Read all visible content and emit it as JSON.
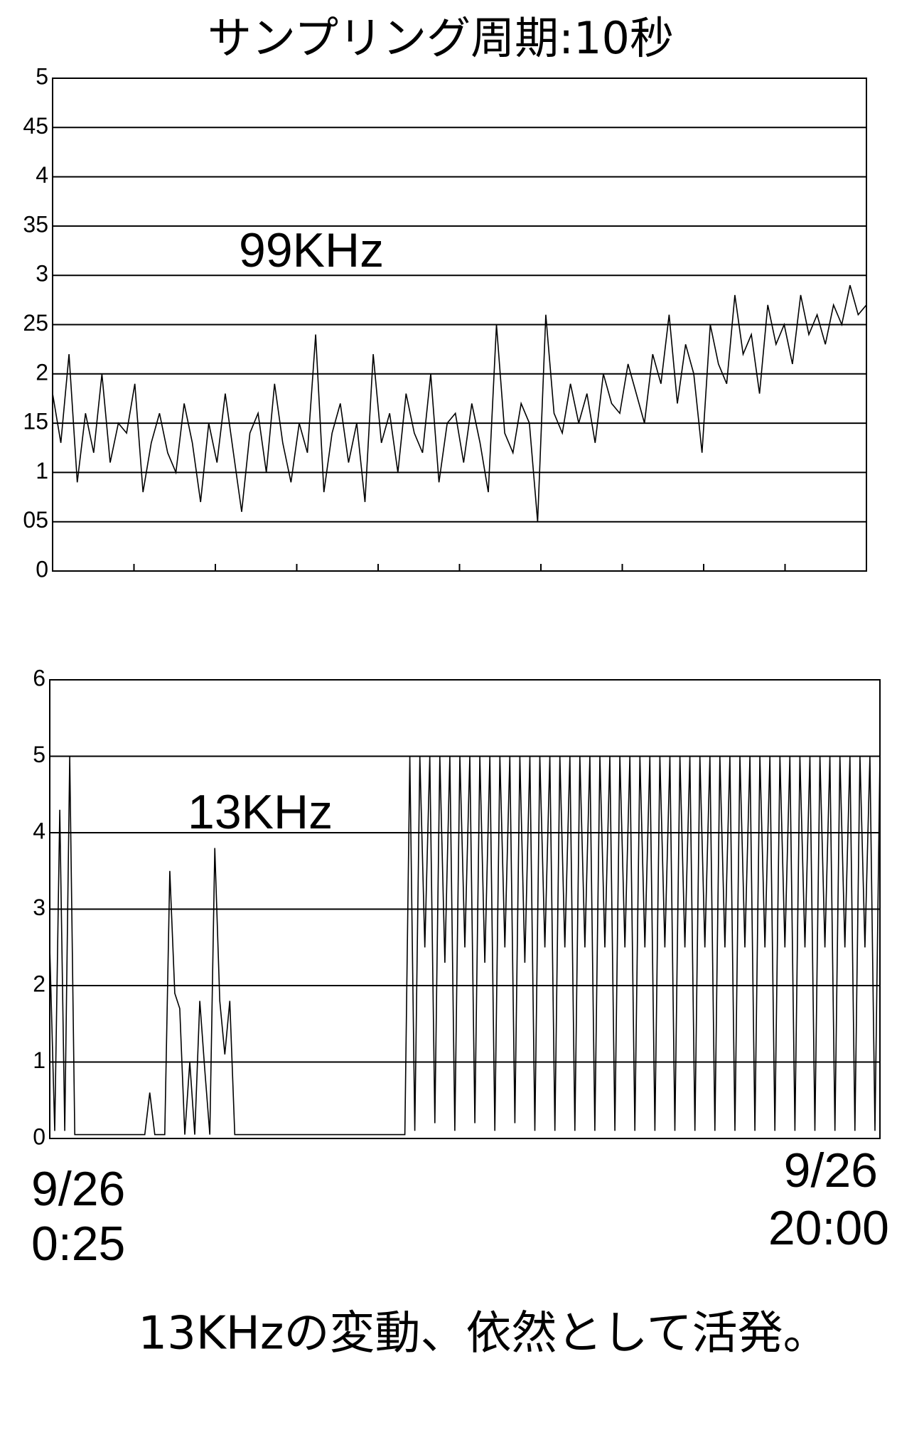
{
  "title": "サンプリング周期:10秒",
  "caption": "13KHzの変動、依然として活発。",
  "x_labels": [
    [
      "9/26",
      "0:25"
    ],
    [
      "9/26",
      "20:00"
    ]
  ],
  "chart_data": [
    {
      "type": "line",
      "annotation": "99KHz",
      "color": "#000000",
      "grid": true,
      "ylim": [
        0,
        5
      ],
      "yticks": [
        0,
        {
          "value": 0.5,
          "label": "05"
        },
        1,
        {
          "value": 1.5,
          "label": "15"
        },
        2,
        {
          "value": 2.5,
          "label": "25"
        },
        3,
        {
          "value": 3.5,
          "label": "35"
        },
        4,
        {
          "value": 4.5,
          "label": "45"
        },
        5
      ],
      "values": [
        1.8,
        1.3,
        2.2,
        0.9,
        1.6,
        1.2,
        2.0,
        1.1,
        1.5,
        1.4,
        1.9,
        0.8,
        1.3,
        1.6,
        1.2,
        1.0,
        1.7,
        1.3,
        0.7,
        1.5,
        1.1,
        1.8,
        1.2,
        0.6,
        1.4,
        1.6,
        1.0,
        1.9,
        1.3,
        0.9,
        1.5,
        1.2,
        2.4,
        0.8,
        1.4,
        1.7,
        1.1,
        1.5,
        0.7,
        2.2,
        1.3,
        1.6,
        1.0,
        1.8,
        1.4,
        1.2,
        2.0,
        0.9,
        1.5,
        1.6,
        1.1,
        1.7,
        1.3,
        0.8,
        2.5,
        1.4,
        1.2,
        1.7,
        1.5,
        0.5,
        2.6,
        1.6,
        1.4,
        1.9,
        1.5,
        1.8,
        1.3,
        2.0,
        1.7,
        1.6,
        2.1,
        1.8,
        1.5,
        2.2,
        1.9,
        2.6,
        1.7,
        2.3,
        2.0,
        1.2,
        2.5,
        2.1,
        1.9,
        2.8,
        2.2,
        2.4,
        1.8,
        2.7,
        2.3,
        2.5,
        2.1,
        2.8,
        2.4,
        2.6,
        2.3,
        2.7,
        2.5,
        2.9,
        2.6,
        2.7
      ]
    },
    {
      "type": "line",
      "annotation": "13KHz",
      "color": "#000000",
      "grid": true,
      "ylim": [
        0,
        6
      ],
      "yticks": [
        0,
        1,
        2,
        3,
        4,
        5,
        6
      ],
      "values": [
        2.5,
        0.1,
        4.3,
        0.1,
        5,
        0.05,
        0.05,
        0.05,
        0.05,
        0.05,
        0.05,
        0.05,
        0.05,
        0.05,
        0.05,
        0.05,
        0.05,
        0.05,
        0.05,
        0.05,
        0.6,
        0.05,
        0.05,
        0.05,
        3.5,
        1.9,
        1.7,
        0.05,
        1.0,
        0.05,
        1.8,
        0.9,
        0.05,
        3.8,
        1.8,
        1.1,
        1.8,
        0.05,
        0.05,
        0.05,
        0.05,
        0.05,
        0.05,
        0.05,
        0.05,
        0.05,
        0.05,
        0.05,
        0.05,
        0.05,
        0.05,
        0.05,
        0.05,
        0.05,
        0.05,
        0.05,
        0.05,
        0.05,
        0.05,
        0.05,
        0.05,
        0.05,
        0.05,
        0.05,
        0.05,
        0.05,
        0.05,
        0.05,
        0.05,
        0.05,
        0.05,
        0.05,
        5,
        0.1,
        5,
        2.5,
        5,
        0.2,
        5,
        2.3,
        5,
        0.1,
        5,
        2.5,
        5,
        0.2,
        5,
        2.3,
        5,
        0.1,
        5,
        2.5,
        5,
        0.2,
        5,
        2.3,
        5,
        0.1,
        5,
        2.5,
        5,
        0.1,
        5,
        2.5,
        5,
        0.1,
        5,
        2.5,
        5,
        0.1,
        5,
        2.5,
        5,
        0.1,
        5,
        2.5,
        5,
        0.1,
        5,
        2.5,
        5,
        0.1,
        5,
        2.5,
        5,
        0.1,
        5,
        2.5,
        5,
        0.1,
        5,
        2.5,
        5,
        0.1,
        5,
        2.5,
        5,
        0.1,
        5,
        2.5,
        5,
        0.1,
        5,
        2.5,
        5,
        0.1,
        5,
        2.5,
        5,
        0.1,
        5,
        2.5,
        5,
        0.1,
        5,
        2.5,
        5,
        0.1,
        5,
        2.5,
        5,
        0.1,
        5,
        2.5,
        5,
        0.1,
        5
      ]
    }
  ]
}
